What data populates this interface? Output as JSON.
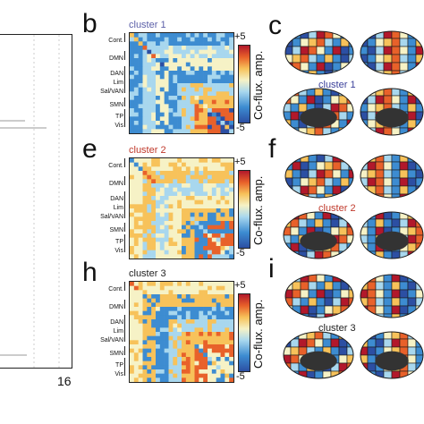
{
  "panel_a": {
    "x_tick_label": "16"
  },
  "matrix_panels": [
    {
      "letter": "b",
      "cluster_label": "cluster 1",
      "cluster_color": "#5b5fa8"
    },
    {
      "letter": "e",
      "cluster_label": "cluster 2",
      "cluster_color": "#c0392b"
    },
    {
      "letter": "h",
      "cluster_label": "cluster 3",
      "cluster_color": "#222222"
    }
  ],
  "brain_panels": [
    {
      "letter": "c",
      "cluster_label": "cluster 1",
      "cluster_color": "#3a3f9a"
    },
    {
      "letter": "f",
      "cluster_label": "cluster 2",
      "cluster_color": "#c0392b"
    },
    {
      "letter": "i",
      "cluster_label": "cluster 3",
      "cluster_color": "#222222"
    }
  ],
  "network_labels": [
    "Cont.",
    "DMN",
    "DAN",
    "Lim",
    "Sal/VAN",
    "SMN",
    "TP",
    "Vis"
  ],
  "colorbar": {
    "max_label": "+5",
    "min_label": "-5",
    "axis_label": "Co-flux. amp."
  },
  "colors": {
    "blue_dark": "#2c4fa3",
    "blue": "#3d8cd1",
    "cyan": "#a8d7ee",
    "cream": "#f6f2c6",
    "yellow": "#f7c25a",
    "orange": "#e8612a",
    "red": "#b2182b"
  }
}
